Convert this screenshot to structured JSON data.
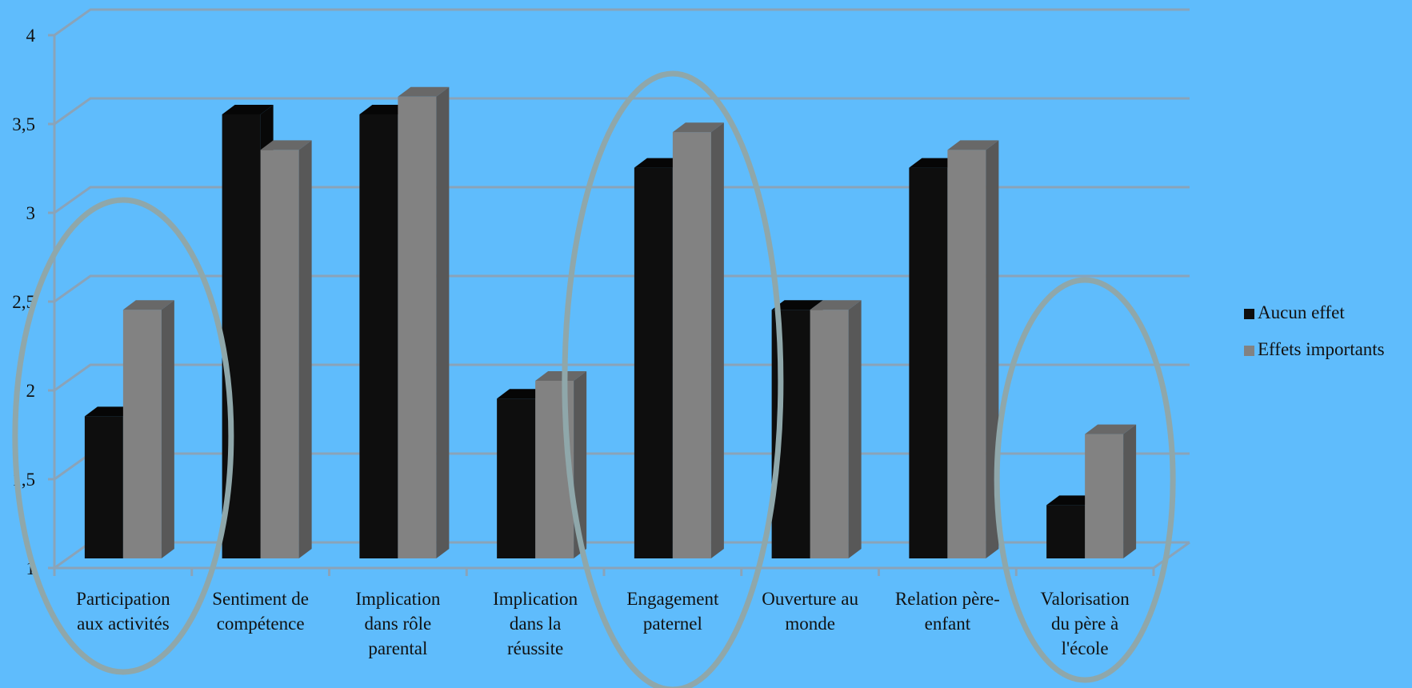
{
  "chart_data": {
    "type": "bar",
    "categories": [
      [
        "Participation",
        "aux activités"
      ],
      [
        "Sentiment de",
        "compétence"
      ],
      [
        "Implication",
        "dans rôle",
        "parental"
      ],
      [
        "Implication",
        "dans la",
        "réussite"
      ],
      [
        "Engagement",
        "paternel"
      ],
      [
        "Ouverture au",
        "monde"
      ],
      [
        "Relation père-",
        "enfant"
      ],
      [
        "Valorisation",
        "du père à",
        "l'école"
      ]
    ],
    "series": [
      {
        "name": "Aucun effet",
        "values": [
          1.8,
          3.5,
          3.5,
          1.9,
          3.2,
          2.4,
          3.2,
          1.3
        ],
        "color": "#0e0e0e"
      },
      {
        "name": "Effets importants",
        "values": [
          2.4,
          3.3,
          3.6,
          2.0,
          3.4,
          2.4,
          3.3,
          1.7
        ],
        "color": "#828282"
      }
    ],
    "yticks": [
      "1",
      "1,5",
      "2",
      "2,5",
      "3",
      "3,5",
      "4"
    ],
    "ylim": [
      1,
      4
    ],
    "grid": true,
    "legend": "right",
    "highlighted_categories": [
      0,
      4,
      7
    ],
    "colors": {
      "background": "#5fbcfc",
      "gridline": "#8aa3b8",
      "highlight_ellipse": "#8fa7aa"
    }
  }
}
